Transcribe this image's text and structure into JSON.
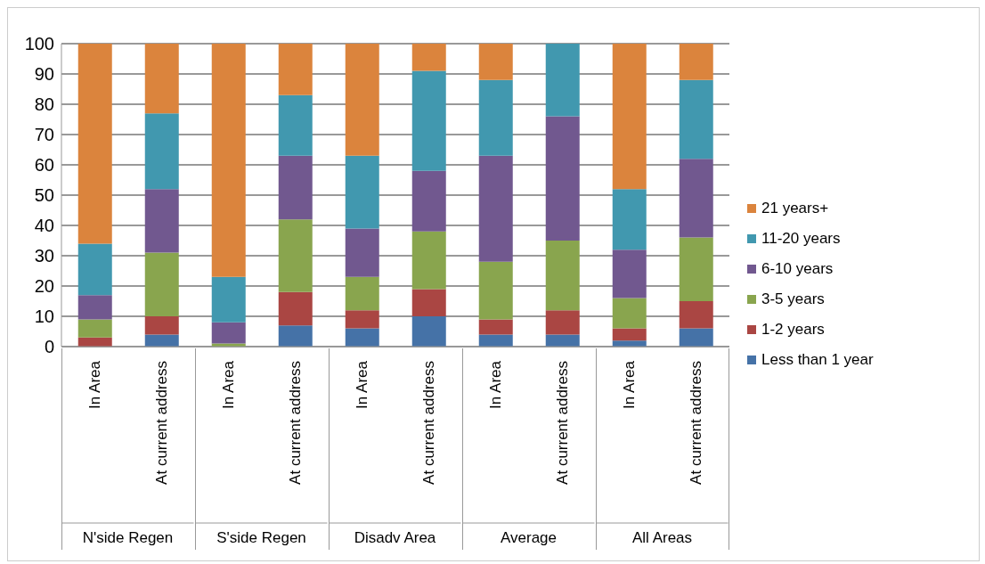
{
  "chart_data": {
    "type": "bar",
    "stacked": true,
    "categories": [
      "In Area",
      "At current address",
      "In Area",
      "At current address",
      "In Area",
      "At current address",
      "In Area",
      "At current address",
      "In Area",
      "At current address"
    ],
    "annotations": [
      "N'side Regen",
      "S'side Regen",
      "Disadv Area",
      "Average",
      "All Areas"
    ],
    "series": [
      {
        "name": "Less than 1 year",
        "color": "#4572a7",
        "values": [
          0,
          4,
          0,
          7,
          6,
          10,
          4,
          4,
          2,
          6
        ]
      },
      {
        "name": "1-2 years",
        "color": "#aa4643",
        "values": [
          3,
          6,
          0,
          11,
          6,
          9,
          5,
          8,
          4,
          9
        ]
      },
      {
        "name": "3-5 years",
        "color": "#89a54e",
        "values": [
          6,
          21,
          1,
          24,
          11,
          19,
          19,
          23,
          10,
          21
        ]
      },
      {
        "name": "6-10 years",
        "color": "#71588f",
        "values": [
          8,
          21,
          7,
          21,
          16,
          20,
          35,
          41,
          16,
          26
        ]
      },
      {
        "name": "11-20 years",
        "color": "#4198af",
        "values": [
          17,
          25,
          15,
          20,
          24,
          33,
          25,
          24,
          20,
          26
        ]
      },
      {
        "name": "21 years+",
        "color": "#db843d",
        "values": [
          66,
          23,
          77,
          17,
          37,
          9,
          12,
          0,
          48,
          12
        ]
      }
    ],
    "ylim": [
      0,
      100
    ],
    "yticks": [
      0,
      10,
      20,
      30,
      40,
      50,
      60,
      70,
      80,
      90,
      100
    ],
    "grid": "y",
    "legend": "right"
  }
}
